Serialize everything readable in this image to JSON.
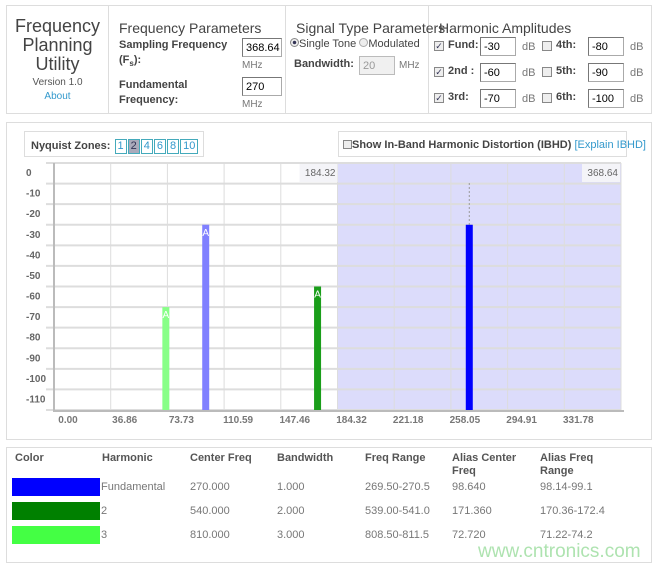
{
  "app": {
    "title": "Frequency Planning Utility",
    "version": "Version 1.0",
    "about": "About"
  },
  "freq": {
    "heading": "Frequency Parameters",
    "fs_label": "Sampling Frequency",
    "fs_sub": "(F",
    "fs_subscript": "s",
    "fs_end": "):",
    "fs_value": "368.64",
    "fs_unit": "MHz",
    "fund_label1": "Fundamental",
    "fund_label2": "Frequency:",
    "fund_value": "270",
    "fund_unit": "MHz"
  },
  "signal": {
    "heading": "Signal Type Parameters",
    "single": "Single Tone",
    "modulated": "Modulated",
    "selected": "Single Tone",
    "bw_label": "Bandwidth:",
    "bw_value": "20",
    "bw_unit": "MHz"
  },
  "harm": {
    "heading": "Harmonic Amplitudes",
    "items": [
      {
        "label": "Fund:",
        "value": "-30",
        "unit": "dB",
        "checked": true
      },
      {
        "label": "2nd :",
        "value": "-60",
        "unit": "dB",
        "checked": true
      },
      {
        "label": "3rd:",
        "value": "-70",
        "unit": "dB",
        "checked": true
      },
      {
        "label": "4th:",
        "value": "-80",
        "unit": "dB",
        "checked": false
      },
      {
        "label": "5th:",
        "value": "-90",
        "unit": "dB",
        "checked": false
      },
      {
        "label": "6th:",
        "value": "-100",
        "unit": "dB",
        "checked": false
      }
    ]
  },
  "nyquist": {
    "label": "Nyquist Zones",
    "zones": [
      "1",
      "2",
      "4",
      "6",
      "8",
      "10"
    ],
    "selected": "2"
  },
  "ibhd": {
    "label": "Show In-Band Harmonic Distortion (IBHD)",
    "link": "[Explain IBHD]",
    "checked": false
  },
  "chart_data": {
    "type": "bar",
    "xlim": [
      0,
      368.64
    ],
    "ylim": [
      -120,
      0
    ],
    "x_ticks": [
      "0.00",
      "36.86",
      "73.73",
      "110.59",
      "147.46",
      "184.32",
      "221.18",
      "258.05",
      "294.91",
      "331.78"
    ],
    "y_ticks": [
      "0",
      "-10",
      "-20",
      "-30",
      "-40",
      "-50",
      "-60",
      "-70",
      "-80",
      "-90",
      "-100",
      "-110"
    ],
    "zone_start": "184.32",
    "zone_end": "368.64",
    "zone_color": "#dcdcfb",
    "bars": [
      {
        "x": 270.0,
        "y": -30,
        "color": "#0000ff",
        "label": ""
      },
      {
        "x": 98.64,
        "y": -30,
        "color": "#8080ff",
        "label": "A"
      },
      {
        "x": 171.36,
        "y": -60,
        "color": "#1a9e1a",
        "label": "A"
      },
      {
        "x": 72.72,
        "y": -70,
        "color": "#88ff88",
        "label": "A"
      }
    ],
    "grid": true
  },
  "table": {
    "headers": [
      "Color",
      "Harmonic",
      "Center Freq",
      "Bandwidth",
      "Freq Range",
      "Alias Center Freq",
      "Alias Freq Range"
    ],
    "rows": [
      {
        "color": "#0000ff",
        "harmonic": "Fundamental",
        "center": "270.000",
        "bw": "1.000",
        "range": "269.50-270.5",
        "alias": "98.640",
        "alias_range": "98.14-99.1"
      },
      {
        "color": "#008000",
        "harmonic": "2",
        "center": "540.000",
        "bw": "2.000",
        "range": "539.00-541.0",
        "alias": "171.360",
        "alias_range": "170.36-172.4"
      },
      {
        "color": "#44ff44",
        "harmonic": "3",
        "center": "810.000",
        "bw": "3.000",
        "range": "808.50-811.5",
        "alias": "72.720",
        "alias_range": "71.22-74.2"
      }
    ]
  },
  "watermark": "www.cntronics.com"
}
